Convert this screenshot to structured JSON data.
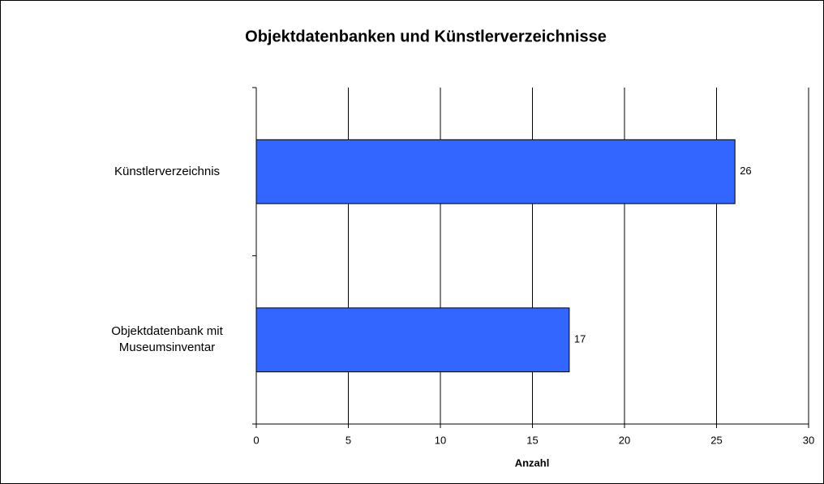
{
  "chart_data": {
    "type": "bar",
    "orientation": "horizontal",
    "title": "Objektdatenbanken und Künstlerverzeichnisse",
    "x_label": "Anzahl",
    "categories": [
      "Künstlerverzeichnis",
      "Objektdatenbank mit Museumsinventar"
    ],
    "values": [
      26,
      17
    ],
    "color": "#3366ff",
    "xlim": [
      0,
      30
    ],
    "xticks": [
      0,
      5,
      10,
      15,
      20,
      25,
      30
    ],
    "grid": true
  }
}
